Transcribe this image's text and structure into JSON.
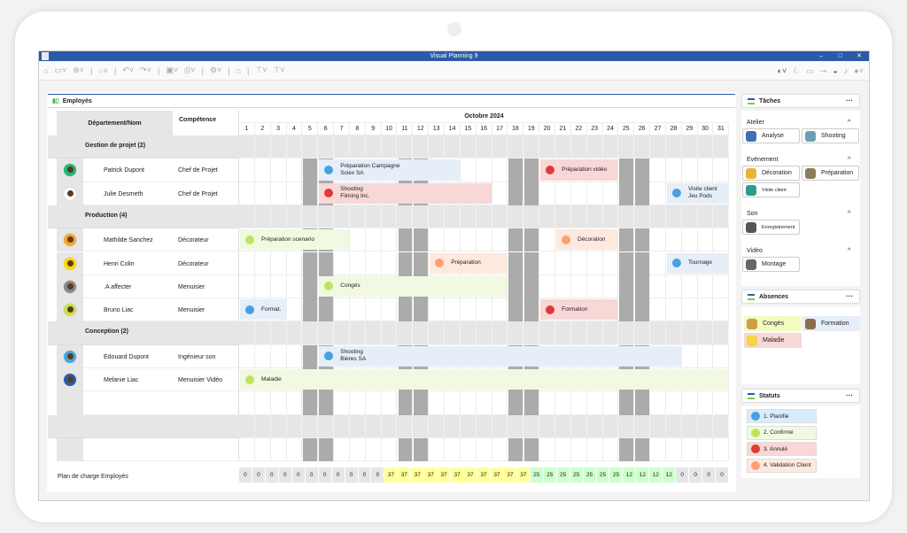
{
  "window": {
    "title": "Visual Planning 9"
  },
  "planning": {
    "title": "Employés",
    "col_dept": "Département/Nom",
    "col_comp": "Compétence",
    "month": "Octobre 2024",
    "days": 31,
    "weekend_days": [
      5,
      6,
      12,
      13,
      19,
      20,
      26,
      27
    ],
    "colors": {
      "blue": "#e6eef8",
      "green": "#f1f9e2",
      "red": "#f8d7d7",
      "orange": "#fde9de",
      "weekend": "#ababab",
      "group": "#e6e6e6"
    },
    "rows": [
      {
        "type": "group",
        "label": "Gestion de projet (2)"
      },
      {
        "type": "person",
        "name": "Patrick Dupont",
        "comp": "Chef de Projet",
        "avatar": "#1fb67a",
        "events": [
          {
            "l1": "Préparation Campagne",
            "l2": "Sciex SA",
            "start": 6,
            "end": 14,
            "status": "blue"
          },
          {
            "l1": "Préparation vidéo",
            "l2": "",
            "start": 20,
            "end": 24,
            "status": "red"
          }
        ]
      },
      {
        "type": "person",
        "name": "Julie Desmeth",
        "comp": "Chef de Projet",
        "avatar": "#ffffff",
        "events": [
          {
            "l1": "Shooting",
            "l2": "Filming Inc.",
            "start": 6,
            "end": 16,
            "status": "red"
          },
          {
            "l1": "Visite client",
            "l2": "Jeu Pods",
            "start": 28,
            "end": 31,
            "status": "blue"
          }
        ]
      },
      {
        "type": "group",
        "label": "Production (4)"
      },
      {
        "type": "person",
        "name": "Mathilde Sanchez",
        "comp": "Décorateur",
        "avatar": "#f5a623",
        "events": [
          {
            "l1": "Préparation scenario",
            "l2": "",
            "start": 1,
            "end": 7,
            "status": "green"
          },
          {
            "l1": "Décoration",
            "l2": "",
            "start": 21,
            "end": 24,
            "status": "orange"
          }
        ]
      },
      {
        "type": "person",
        "name": "Henri Colin",
        "comp": "Décorateur",
        "avatar": "#ffd700",
        "events": [
          {
            "l1": "Préparation",
            "l2": "",
            "start": 13,
            "end": 17,
            "status": "orange"
          },
          {
            "l1": "Tournage",
            "l2": "",
            "start": 28,
            "end": 31,
            "status": "blue"
          }
        ]
      },
      {
        "type": "person",
        "name": ".A affecter",
        "comp": "Menuisier",
        "avatar": "#888888",
        "events": [
          {
            "l1": "Congés",
            "l2": "",
            "start": 6,
            "end": 17,
            "status": "green"
          }
        ]
      },
      {
        "type": "person",
        "name": "Bruno Liac",
        "comp": "Menuisier",
        "avatar": "#c9e04a",
        "events": [
          {
            "l1": "Format.",
            "l2": "",
            "start": 1,
            "end": 3,
            "status": "blue"
          },
          {
            "l1": "Formation",
            "l2": "",
            "start": 20,
            "end": 24,
            "status": "red"
          }
        ]
      },
      {
        "type": "group",
        "label": "Conception (2)"
      },
      {
        "type": "person",
        "name": "Edouard Dupont",
        "comp": "Ingénieur son",
        "avatar": "#4aa3df",
        "events": [
          {
            "l1": "Shooting",
            "l2": "Bières SA",
            "start": 6,
            "end": 28,
            "status": "blue"
          }
        ]
      },
      {
        "type": "person",
        "name": "Melanie Liac",
        "comp": "Menuisier Vidéo",
        "avatar": "#2b5ba8",
        "events": [
          {
            "l1": "Maladie",
            "l2": "",
            "start": 1,
            "end": 31,
            "status": "green"
          }
        ]
      },
      {
        "type": "empty"
      },
      {
        "type": "group",
        "label": ""
      },
      {
        "type": "empty"
      }
    ],
    "load_label": "Plan de charge Employés",
    "load_values": [
      0,
      0,
      0,
      0,
      0,
      0,
      0,
      0,
      0,
      0,
      0,
      37,
      37,
      37,
      37,
      37,
      37,
      37,
      37,
      37,
      37,
      37,
      25,
      25,
      25,
      25,
      25,
      25,
      25,
      12,
      12,
      12,
      12,
      0,
      0,
      0,
      0
    ]
  },
  "status_colors": {
    "blue": "#4a9fe0",
    "green": "#c1e35c",
    "red": "#e03b35",
    "orange": "#ff9f73"
  },
  "right": {
    "taches": {
      "title": "Tâches",
      "more": "···",
      "sections": [
        {
          "label": "Atelier",
          "items": [
            "Analyse",
            "Shooting"
          ]
        },
        {
          "label": "Evénement",
          "items": [
            "Décoration",
            "Préparation",
            "Visite client"
          ]
        },
        {
          "label": "Son",
          "items": [
            "Enregistrement"
          ]
        },
        {
          "label": "Vidéo",
          "items": [
            "Montage"
          ]
        }
      ]
    },
    "absences": {
      "title": "Absences",
      "more": "···",
      "items": [
        "Congés",
        "Formation",
        "Maladie"
      ]
    },
    "statuts": {
      "title": "Statuts",
      "more": "···",
      "items": [
        "1. Planifié",
        "2. Confirmé",
        "3. Annulé",
        "4. Validation Client"
      ]
    }
  }
}
